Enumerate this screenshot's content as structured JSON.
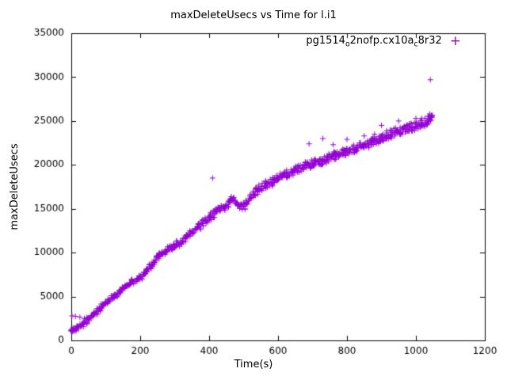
{
  "chart_data": {
    "type": "scatter",
    "title": "maxDeleteUsecs vs Time for l.i1",
    "xlabel": "Time(s)",
    "ylabel": "maxDeleteUsecs",
    "xlim": [
      0,
      1200
    ],
    "ylim": [
      0,
      35000
    ],
    "xticks": [
      0,
      200,
      400,
      600,
      800,
      1000,
      1200
    ],
    "yticks": [
      0,
      5000,
      10000,
      15000,
      20000,
      25000,
      30000,
      35000
    ],
    "grid": false,
    "legend_position": "top-right-inside",
    "legend_marker_glyph": "+",
    "series": [
      {
        "name": "pg1514_o2nofp.cx10a_c8r32",
        "label_segments": [
          {
            "t": "pg1514"
          },
          {
            "t": "o",
            "sub": true
          },
          {
            "t": "2nofp.cx10a"
          },
          {
            "t": "c",
            "sub": true
          },
          {
            "t": "8r32"
          }
        ],
        "marker": "plus",
        "color": "#9400d3",
        "points_per_anchor": 7,
        "x_jitter": 6,
        "scatter_band_base": 200,
        "scatter_band_scale": 0.013,
        "trend_points": [
          [
            0,
            1100
          ],
          [
            10,
            1300
          ],
          [
            20,
            1500
          ],
          [
            30,
            1750
          ],
          [
            40,
            2050
          ],
          [
            50,
            2400
          ],
          [
            60,
            2800
          ],
          [
            70,
            3150
          ],
          [
            80,
            3500
          ],
          [
            90,
            3900
          ],
          [
            100,
            4300
          ],
          [
            110,
            4600
          ],
          [
            120,
            4900
          ],
          [
            130,
            5200
          ],
          [
            140,
            5500
          ],
          [
            150,
            5900
          ],
          [
            160,
            6200
          ],
          [
            170,
            6500
          ],
          [
            180,
            6700
          ],
          [
            190,
            6900
          ],
          [
            200,
            7100
          ],
          [
            210,
            7500
          ],
          [
            220,
            7900
          ],
          [
            230,
            8400
          ],
          [
            240,
            8900
          ],
          [
            250,
            9400
          ],
          [
            260,
            9800
          ],
          [
            270,
            10100
          ],
          [
            280,
            10400
          ],
          [
            290,
            10600
          ],
          [
            300,
            10800
          ],
          [
            310,
            11000
          ],
          [
            320,
            11300
          ],
          [
            330,
            11600
          ],
          [
            340,
            11900
          ],
          [
            350,
            12200
          ],
          [
            360,
            12600
          ],
          [
            370,
            13000
          ],
          [
            380,
            13400
          ],
          [
            390,
            13700
          ],
          [
            400,
            14000
          ],
          [
            410,
            14400
          ],
          [
            420,
            14700
          ],
          [
            430,
            15000
          ],
          [
            440,
            15200
          ],
          [
            450,
            15400
          ],
          [
            460,
            15800
          ],
          [
            470,
            16200
          ],
          [
            480,
            15700
          ],
          [
            490,
            15300
          ],
          [
            500,
            15300
          ],
          [
            510,
            15600
          ],
          [
            520,
            16200
          ],
          [
            530,
            16600
          ],
          [
            540,
            17000
          ],
          [
            550,
            17300
          ],
          [
            560,
            17600
          ],
          [
            570,
            17800
          ],
          [
            580,
            18000
          ],
          [
            590,
            18200
          ],
          [
            600,
            18400
          ],
          [
            610,
            18600
          ],
          [
            620,
            18800
          ],
          [
            630,
            19000
          ],
          [
            640,
            19200
          ],
          [
            650,
            19400
          ],
          [
            660,
            19600
          ],
          [
            670,
            19700
          ],
          [
            680,
            19900
          ],
          [
            690,
            20000
          ],
          [
            700,
            20100
          ],
          [
            710,
            20300
          ],
          [
            720,
            20400
          ],
          [
            730,
            20500
          ],
          [
            740,
            20600
          ],
          [
            750,
            20800
          ],
          [
            760,
            21000
          ],
          [
            770,
            21100
          ],
          [
            780,
            21200
          ],
          [
            790,
            21400
          ],
          [
            800,
            21500
          ],
          [
            810,
            21700
          ],
          [
            820,
            21800
          ],
          [
            830,
            22000
          ],
          [
            840,
            22100
          ],
          [
            850,
            22300
          ],
          [
            860,
            22400
          ],
          [
            870,
            22600
          ],
          [
            880,
            22700
          ],
          [
            890,
            22900
          ],
          [
            900,
            23000
          ],
          [
            910,
            23200
          ],
          [
            920,
            23400
          ],
          [
            930,
            23500
          ],
          [
            940,
            23700
          ],
          [
            950,
            23800
          ],
          [
            960,
            24000
          ],
          [
            970,
            24100
          ],
          [
            980,
            24200
          ],
          [
            990,
            24300
          ],
          [
            1000,
            24400
          ],
          [
            1010,
            24600
          ],
          [
            1020,
            24800
          ],
          [
            1030,
            25000
          ],
          [
            1040,
            25200
          ],
          [
            1045,
            25400
          ]
        ],
        "outliers": [
          [
            2,
            2800
          ],
          [
            12,
            2750
          ],
          [
            25,
            2650
          ],
          [
            38,
            2500
          ],
          [
            410,
            18500
          ],
          [
            690,
            22400
          ],
          [
            730,
            23000
          ],
          [
            760,
            22300
          ],
          [
            800,
            22900
          ],
          [
            850,
            23300
          ],
          [
            880,
            23500
          ],
          [
            900,
            24500
          ],
          [
            950,
            25000
          ],
          [
            1000,
            25300
          ],
          [
            1042,
            29700
          ]
        ]
      }
    ]
  }
}
